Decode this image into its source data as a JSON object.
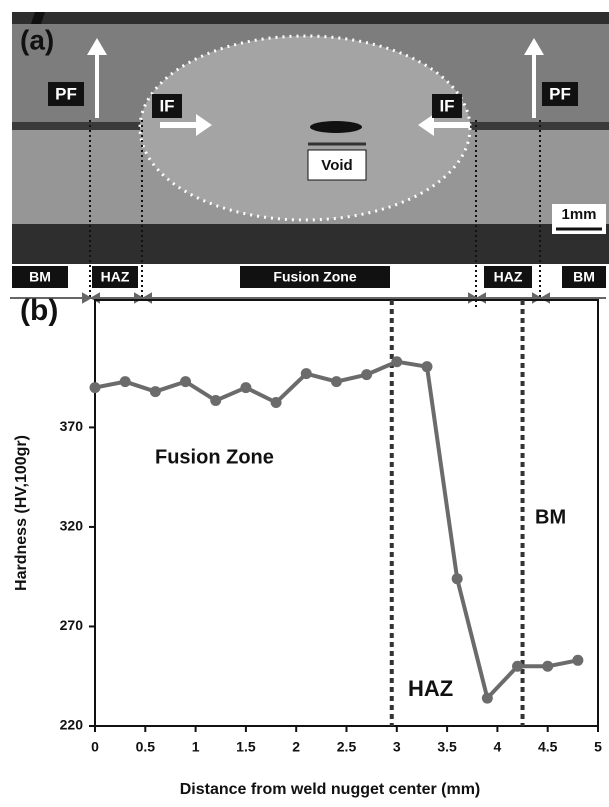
{
  "panel_a": {
    "label": "(a)",
    "arrows": [
      "PF",
      "IF",
      "IF",
      "PF"
    ],
    "void": "Void",
    "scale": "1mm",
    "zones": [
      "BM",
      "HAZ",
      "Fusion Zone",
      "HAZ",
      "BM"
    ]
  },
  "chart_data": {
    "type": "line",
    "panel_label": "(b)",
    "x_label": "Distance from weld nugget center (mm)",
    "y_label": "Hardness (HV,100gr)",
    "x": [
      0,
      0.3,
      0.6,
      0.9,
      1.2,
      1.5,
      1.8,
      2.1,
      2.4,
      2.7,
      3.0,
      3.3,
      3.6,
      3.9,
      4.2,
      4.5,
      4.8
    ],
    "values": [
      390,
      393,
      388,
      393,
      383.5,
      390,
      382.5,
      397,
      393,
      396.5,
      403,
      400.5,
      294,
      234,
      250,
      250,
      253
    ],
    "color": "#6b6b6b",
    "xlim": [
      0,
      5
    ],
    "xticks": [
      0,
      0.5,
      1,
      1.5,
      2,
      2.5,
      3,
      3.5,
      4,
      4.5,
      5
    ],
    "ylim": [
      220,
      434
    ],
    "yticks": [
      220,
      270,
      320,
      370
    ],
    "vlines": [
      2.95,
      4.25
    ],
    "annotations": [
      "Fusion Zone",
      "BM",
      "HAZ"
    ]
  }
}
